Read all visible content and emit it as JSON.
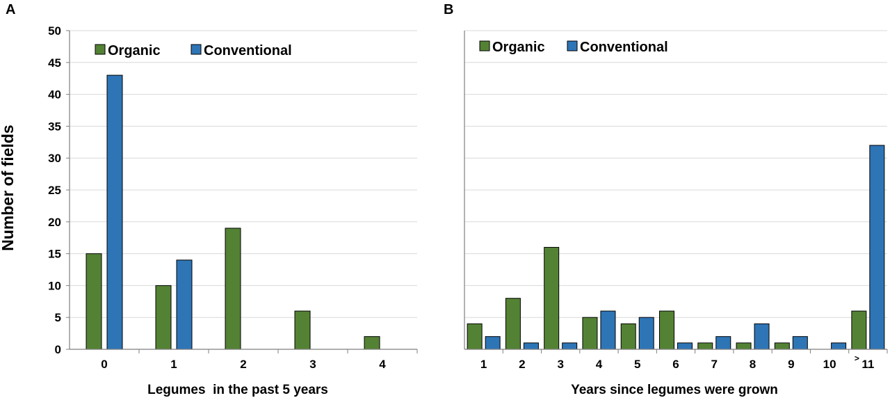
{
  "y_axis_label": "Number of fields",
  "colors": {
    "organic": "#548235",
    "conventional": "#2e75b6",
    "grid": "#d9d9d9",
    "axis": "#7f7f7f"
  },
  "chart_data": [
    {
      "type": "bar",
      "panel": "A",
      "xlabel": "Legumes  in the past 5 years",
      "ylabel": "Number of fields",
      "ylim": [
        0,
        50
      ],
      "yticks": [
        0,
        5,
        10,
        15,
        20,
        25,
        30,
        35,
        40,
        45,
        50
      ],
      "grid": true,
      "legend": "top-left",
      "categories": [
        "0",
        "1",
        "2",
        "3",
        "4"
      ],
      "series": [
        {
          "name": "Organic",
          "values": [
            15,
            10,
            19,
            6,
            2
          ]
        },
        {
          "name": "Conventional",
          "values": [
            43,
            14,
            0,
            0,
            0
          ]
        }
      ]
    },
    {
      "type": "bar",
      "panel": "B",
      "xlabel": "Years since legumes were grown",
      "ylim": [
        0,
        50
      ],
      "yticks": [
        0,
        5,
        10,
        15,
        20,
        25,
        30,
        35,
        40,
        45,
        50
      ],
      "grid": true,
      "legend": "top-left",
      "categories": [
        "1",
        "2",
        "3",
        "4",
        "5",
        "6",
        "7",
        "8",
        "9",
        "10",
        "11"
      ],
      "category_prefix_last": ">",
      "series": [
        {
          "name": "Organic",
          "values": [
            4,
            8,
            16,
            5,
            4,
            6,
            1,
            1,
            1,
            0,
            6
          ]
        },
        {
          "name": "Conventional",
          "values": [
            2,
            1,
            1,
            6,
            5,
            1,
            2,
            4,
            2,
            1,
            32
          ]
        }
      ]
    }
  ]
}
